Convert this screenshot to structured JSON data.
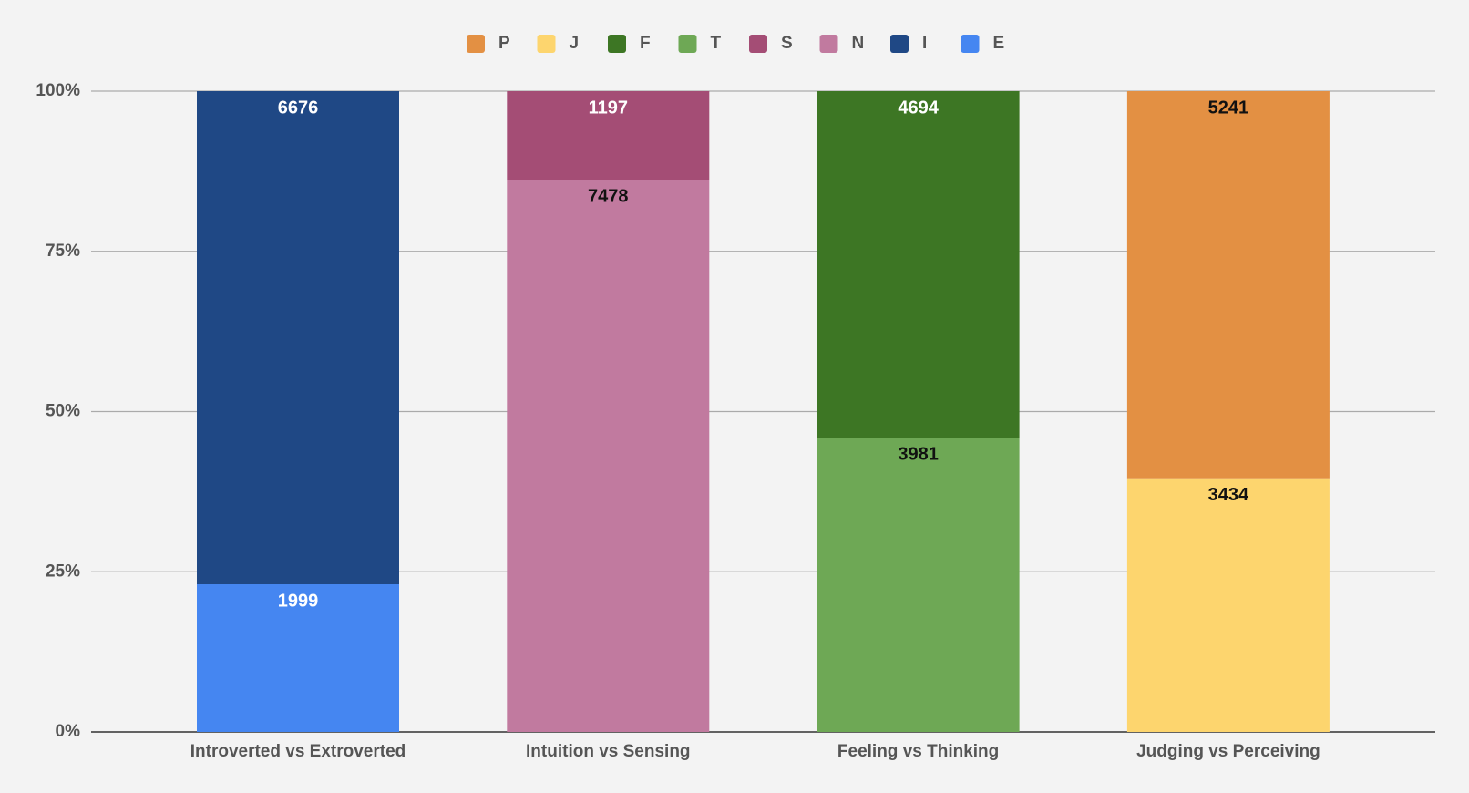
{
  "chart_data": {
    "type": "bar",
    "stacking": "percent",
    "categories": [
      "Introverted vs Extroverted",
      "Intuition vs Sensing",
      "Feeling vs Thinking",
      "Judging vs Perceiving"
    ],
    "series": [
      {
        "name": "P",
        "color": "#e39043",
        "values": [
          null,
          null,
          null,
          5241
        ]
      },
      {
        "name": "J",
        "color": "#fdd56e",
        "values": [
          null,
          null,
          null,
          3434
        ]
      },
      {
        "name": "F",
        "color": "#3d7624",
        "values": [
          null,
          null,
          4694,
          null
        ]
      },
      {
        "name": "T",
        "color": "#6ea855",
        "values": [
          null,
          null,
          3981,
          null
        ]
      },
      {
        "name": "S",
        "color": "#a44d75",
        "values": [
          null,
          1197,
          null,
          null
        ]
      },
      {
        "name": "N",
        "color": "#c17a9f",
        "values": [
          null,
          7478,
          null,
          null
        ]
      },
      {
        "name": "I",
        "color": "#1f4885",
        "values": [
          6676,
          null,
          null,
          null
        ]
      },
      {
        "name": "E",
        "color": "#4586f1",
        "values": [
          1999,
          null,
          null,
          null
        ]
      }
    ],
    "ylim": [
      0,
      100
    ],
    "yticks": [
      {
        "value": 0,
        "label": "0%"
      },
      {
        "value": 25,
        "label": "25%"
      },
      {
        "value": 50,
        "label": "50%"
      },
      {
        "value": 75,
        "label": "75%"
      },
      {
        "value": 100,
        "label": "100%"
      }
    ],
    "grid": true,
    "legend": "top"
  }
}
